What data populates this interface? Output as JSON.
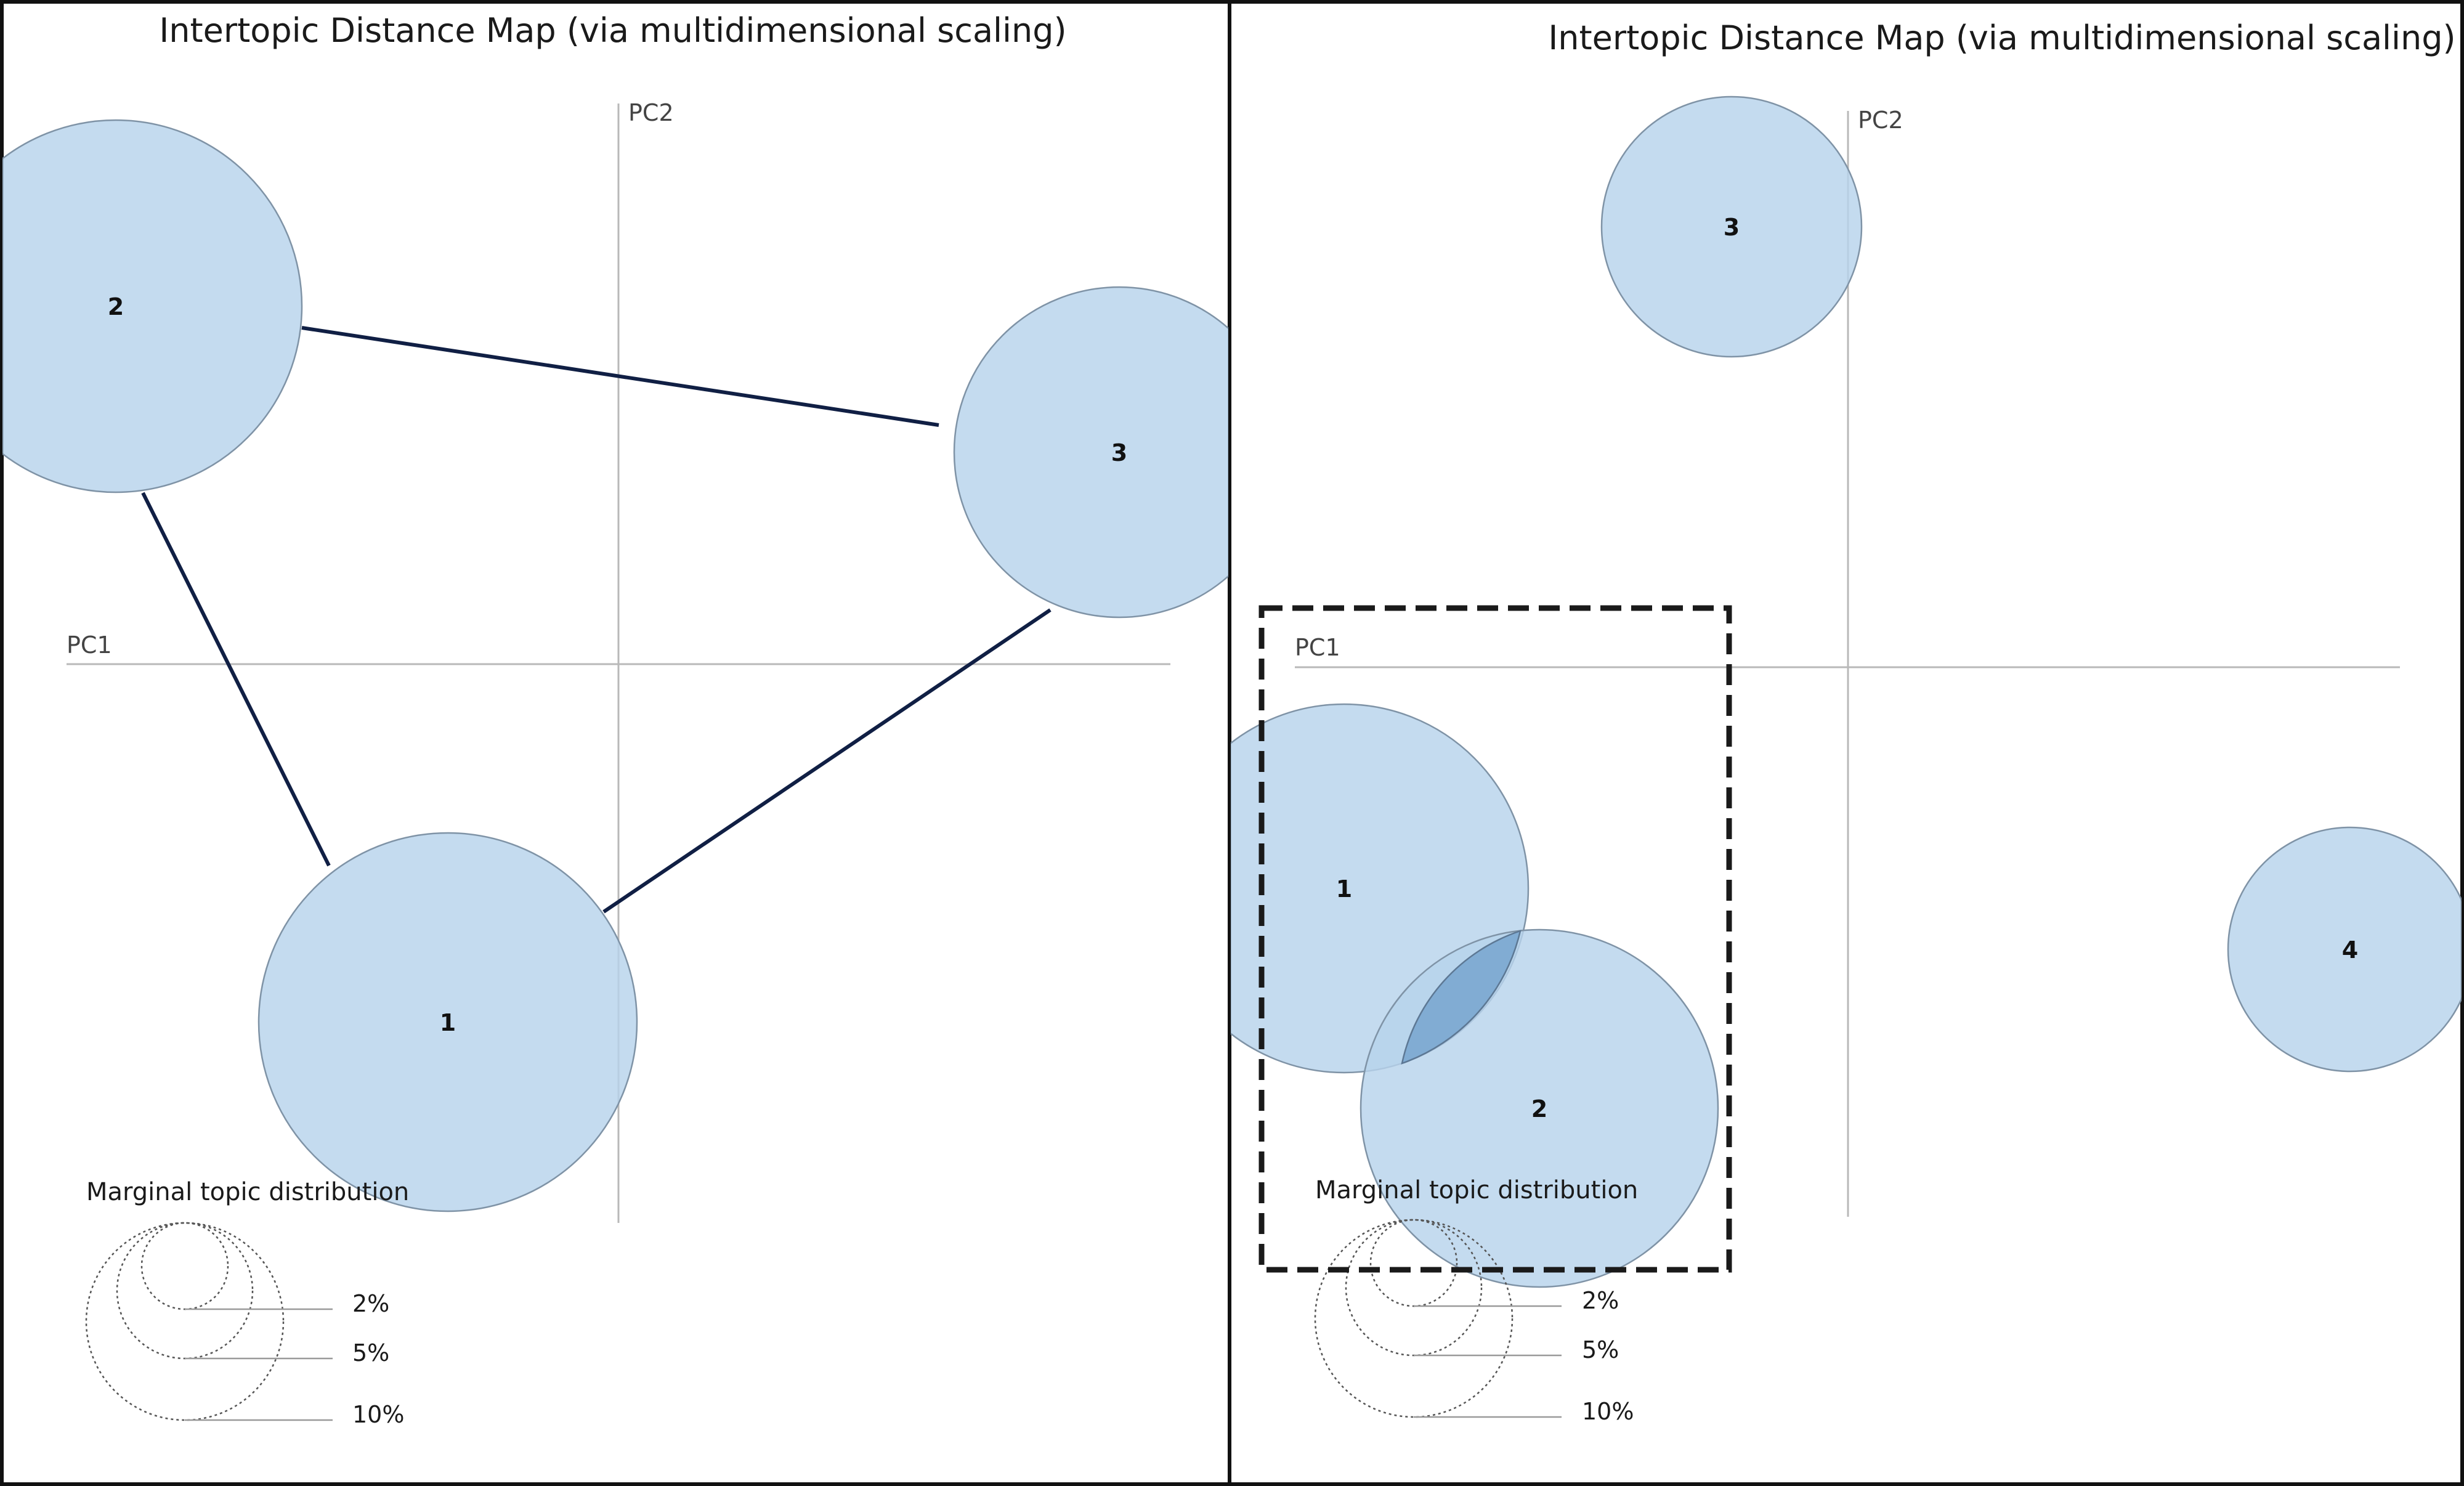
{
  "panels": [
    {
      "title": "Intertopic Distance Map (via multidimensional scaling)",
      "axes": {
        "pc1_label": "PC1",
        "pc2_label": "PC2"
      },
      "topics": [
        {
          "label": "1"
        },
        {
          "label": "2"
        },
        {
          "label": "3"
        }
      ],
      "legend": {
        "title": "Marginal topic distribution",
        "sizes": [
          {
            "label": "2%"
          },
          {
            "label": "5%"
          },
          {
            "label": "10%"
          }
        ]
      }
    },
    {
      "title": "Intertopic Distance Map (via multidimensional scaling)",
      "axes": {
        "pc1_label": "PC1",
        "pc2_label": "PC2"
      },
      "topics": [
        {
          "label": "1"
        },
        {
          "label": "2"
        },
        {
          "label": "3"
        },
        {
          "label": "4"
        }
      ],
      "legend": {
        "title": "Marginal topic distribution",
        "sizes": [
          {
            "label": "2%"
          },
          {
            "label": "5%"
          },
          {
            "label": "10%"
          }
        ]
      }
    }
  ],
  "colors": {
    "bubble_fill": "#b7d3ec",
    "bubble_overlap": "#6f9ecb",
    "edge": "#101f44",
    "axis": "#b9b9b9"
  }
}
